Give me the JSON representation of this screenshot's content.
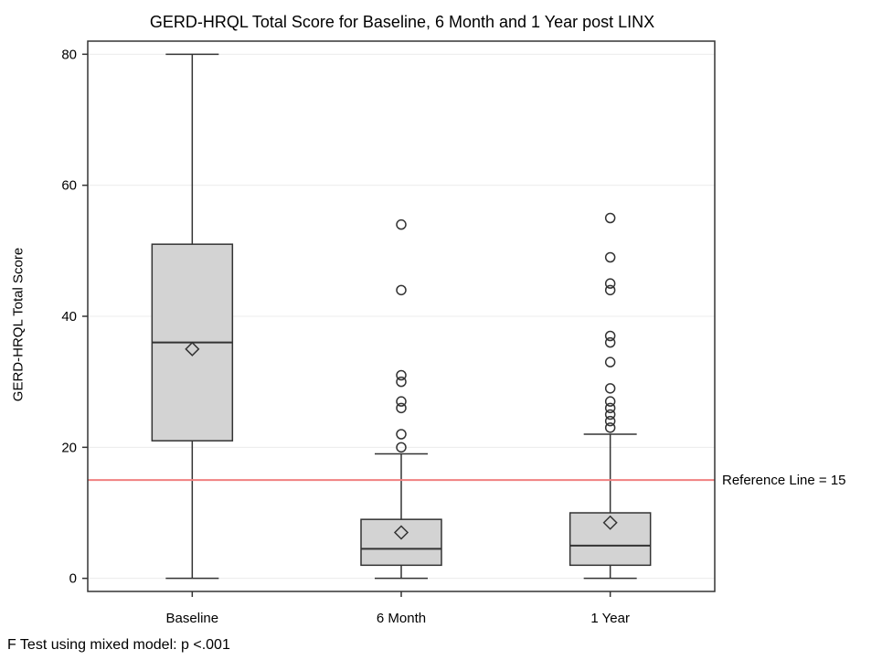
{
  "chart_data": {
    "type": "box",
    "title": "GERD-HRQL Total Score for Baseline, 6 Month and 1 Year post LINX",
    "xlabel": "",
    "ylabel": "GERD-HRQL Total Score",
    "ylim": [
      -2,
      82
    ],
    "yticks": [
      0,
      20,
      40,
      60,
      80
    ],
    "categories": [
      "Baseline",
      "6 Month",
      "1 Year"
    ],
    "grid": "horizontal",
    "box_color": "#d3d3d3",
    "boxes": [
      {
        "category": "Baseline",
        "min": 0,
        "q1": 21,
        "median": 36,
        "q3": 51,
        "max": 80,
        "mean": 35,
        "outliers": []
      },
      {
        "category": "6 Month",
        "min": 0,
        "q1": 2,
        "median": 4.5,
        "q3": 9,
        "max": 19,
        "mean": 7,
        "outliers": [
          20,
          22,
          26,
          27,
          30,
          31,
          44,
          54
        ]
      },
      {
        "category": "1 Year",
        "min": 0,
        "q1": 2,
        "median": 5,
        "q3": 10,
        "max": 22,
        "mean": 8.5,
        "outliers": [
          23,
          24,
          25,
          26,
          27,
          29,
          33,
          36,
          37,
          44,
          45,
          49,
          55
        ]
      }
    ],
    "reference_line": {
      "value": 15,
      "label": "Reference Line = 15",
      "color": "#f08080"
    }
  },
  "footnote": "F Test using mixed model: p <.001"
}
